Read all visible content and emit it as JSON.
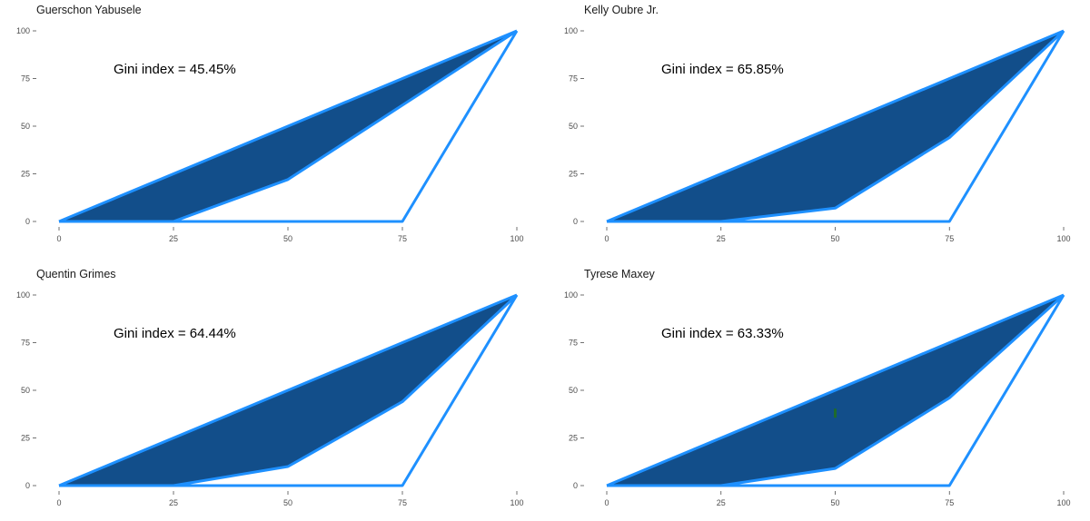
{
  "colors": {
    "line": "#1e90ff",
    "fill": "#124e8a",
    "marker": "#1f6b2c",
    "axis_text": "#4d4d4d"
  },
  "chart_data": [
    {
      "type": "area",
      "title": "Guerschon Yabusele",
      "annotation": "Gini index = 45.45%",
      "xlim": [
        0,
        100
      ],
      "ylim": [
        0,
        100
      ],
      "x_ticks": [
        0,
        25,
        50,
        75,
        100
      ],
      "y_ticks": [
        0,
        25,
        50,
        75,
        100
      ],
      "grid": false,
      "series": [
        {
          "x": [
            0,
            100
          ],
          "y": [
            0,
            100
          ]
        },
        {
          "x": [
            0,
            25,
            50,
            75,
            100
          ],
          "y": [
            0,
            0,
            22,
            61,
            100
          ]
        },
        {
          "x": [
            0,
            75,
            100
          ],
          "y": [
            0,
            0,
            100
          ]
        }
      ]
    },
    {
      "type": "area",
      "title": "Kelly Oubre Jr.",
      "annotation": "Gini index = 65.85%",
      "xlim": [
        0,
        100
      ],
      "ylim": [
        0,
        100
      ],
      "x_ticks": [
        0,
        25,
        50,
        75,
        100
      ],
      "y_ticks": [
        0,
        25,
        50,
        75,
        100
      ],
      "grid": false,
      "series": [
        {
          "x": [
            0,
            100
          ],
          "y": [
            0,
            100
          ]
        },
        {
          "x": [
            0,
            25,
            50,
            75,
            100
          ],
          "y": [
            0,
            0,
            7,
            44,
            100
          ]
        },
        {
          "x": [
            0,
            75,
            100
          ],
          "y": [
            0,
            0,
            100
          ]
        }
      ]
    },
    {
      "type": "area",
      "title": "Quentin Grimes",
      "annotation": "Gini index = 64.44%",
      "xlim": [
        0,
        100
      ],
      "ylim": [
        0,
        100
      ],
      "x_ticks": [
        0,
        25,
        50,
        75,
        100
      ],
      "y_ticks": [
        0,
        25,
        50,
        75,
        100
      ],
      "grid": false,
      "series": [
        {
          "x": [
            0,
            100
          ],
          "y": [
            0,
            100
          ]
        },
        {
          "x": [
            0,
            25,
            50,
            75,
            100
          ],
          "y": [
            0,
            0,
            10,
            44,
            100
          ]
        },
        {
          "x": [
            0,
            75,
            100
          ],
          "y": [
            0,
            0,
            100
          ]
        }
      ]
    },
    {
      "type": "area",
      "title": "Tyrese Maxey",
      "annotation": "Gini index = 63.33%",
      "xlim": [
        0,
        100
      ],
      "ylim": [
        0,
        100
      ],
      "x_ticks": [
        0,
        25,
        50,
        75,
        100
      ],
      "y_ticks": [
        0,
        25,
        50,
        75,
        100
      ],
      "grid": false,
      "series": [
        {
          "x": [
            0,
            100
          ],
          "y": [
            0,
            100
          ]
        },
        {
          "x": [
            0,
            25,
            50,
            75,
            100
          ],
          "y": [
            0,
            0,
            9,
            46,
            100
          ]
        },
        {
          "x": [
            0,
            75,
            100
          ],
          "y": [
            0,
            0,
            100
          ]
        }
      ],
      "marker": {
        "x": 50,
        "y": 38
      }
    }
  ]
}
